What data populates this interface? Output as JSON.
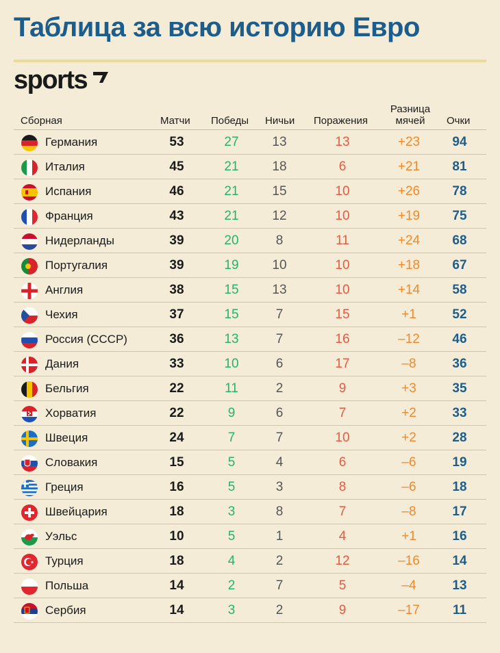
{
  "title": "Таблица за всю историю Евро",
  "brand": "sports",
  "columns": {
    "team": "Сборная",
    "matches": "Матчи",
    "wins": "Победы",
    "draws": "Ничьи",
    "losses": "Поражения",
    "goal_diff_line1": "Разница",
    "goal_diff_line2": "мячей",
    "points": "Очки"
  },
  "colors": {
    "title": "#1d5d8c",
    "wins": "#27b26b",
    "losses": "#e35a45",
    "goal_diff": "#ee8a2e",
    "points": "#1d5d8c",
    "background": "#f4ecd6"
  },
  "chart_data": {
    "type": "table",
    "title": "Таблица за всю историю Евро",
    "columns": [
      "Сборная",
      "Матчи",
      "Победы",
      "Ничьи",
      "Поражения",
      "Разница мячей",
      "Очки"
    ],
    "rows": [
      {
        "team": "Германия",
        "flag": "germany-flag-icon",
        "matches": "53",
        "wins": "27",
        "draws": "13",
        "losses": "13",
        "gd": "+23",
        "points": "94"
      },
      {
        "team": "Италия",
        "flag": "italy-flag-icon",
        "matches": "45",
        "wins": "21",
        "draws": "18",
        "losses": "6",
        "gd": "+21",
        "points": "81"
      },
      {
        "team": "Испания",
        "flag": "spain-flag-icon",
        "matches": "46",
        "wins": "21",
        "draws": "15",
        "losses": "10",
        "gd": "+26",
        "points": "78"
      },
      {
        "team": "Франция",
        "flag": "france-flag-icon",
        "matches": "43",
        "wins": "21",
        "draws": "12",
        "losses": "10",
        "gd": "+19",
        "points": "75"
      },
      {
        "team": "Нидерланды",
        "flag": "netherlands-flag-icon",
        "matches": "39",
        "wins": "20",
        "draws": "8",
        "losses": "11",
        "gd": "+24",
        "points": "68"
      },
      {
        "team": "Португалия",
        "flag": "portugal-flag-icon",
        "matches": "39",
        "wins": "19",
        "draws": "10",
        "losses": "10",
        "gd": "+18",
        "points": "67"
      },
      {
        "team": "Англия",
        "flag": "england-flag-icon",
        "matches": "38",
        "wins": "15",
        "draws": "13",
        "losses": "10",
        "gd": "+14",
        "points": "58"
      },
      {
        "team": "Чехия",
        "flag": "czechia-flag-icon",
        "matches": "37",
        "wins": "15",
        "draws": "7",
        "losses": "15",
        "gd": "+1",
        "points": "52"
      },
      {
        "team": "Россия (СССР)",
        "flag": "russia-flag-icon",
        "matches": "36",
        "wins": "13",
        "draws": "7",
        "losses": "16",
        "gd": "–12",
        "points": "46"
      },
      {
        "team": "Дания",
        "flag": "denmark-flag-icon",
        "matches": "33",
        "wins": "10",
        "draws": "6",
        "losses": "17",
        "gd": "–8",
        "points": "36"
      },
      {
        "team": "Бельгия",
        "flag": "belgium-flag-icon",
        "matches": "22",
        "wins": "11",
        "draws": "2",
        "losses": "9",
        "gd": "+3",
        "points": "35"
      },
      {
        "team": "Хорватия",
        "flag": "croatia-flag-icon",
        "matches": "22",
        "wins": "9",
        "draws": "6",
        "losses": "7",
        "gd": "+2",
        "points": "33"
      },
      {
        "team": "Швеция",
        "flag": "sweden-flag-icon",
        "matches": "24",
        "wins": "7",
        "draws": "7",
        "losses": "10",
        "gd": "+2",
        "points": "28"
      },
      {
        "team": "Словакия",
        "flag": "slovakia-flag-icon",
        "matches": "15",
        "wins": "5",
        "draws": "4",
        "losses": "6",
        "gd": "–6",
        "points": "19"
      },
      {
        "team": "Греция",
        "flag": "greece-flag-icon",
        "matches": "16",
        "wins": "5",
        "draws": "3",
        "losses": "8",
        "gd": "–6",
        "points": "18"
      },
      {
        "team": "Швейцария",
        "flag": "switzerland-flag-icon",
        "matches": "18",
        "wins": "3",
        "draws": "8",
        "losses": "7",
        "gd": "–8",
        "points": "17"
      },
      {
        "team": "Уэльс",
        "flag": "wales-flag-icon",
        "matches": "10",
        "wins": "5",
        "draws": "1",
        "losses": "4",
        "gd": "+1",
        "points": "16"
      },
      {
        "team": "Турция",
        "flag": "turkey-flag-icon",
        "matches": "18",
        "wins": "4",
        "draws": "2",
        "losses": "12",
        "gd": "–16",
        "points": "14"
      },
      {
        "team": "Польша",
        "flag": "poland-flag-icon",
        "matches": "14",
        "wins": "2",
        "draws": "7",
        "losses": "5",
        "gd": "–4",
        "points": "13"
      },
      {
        "team": "Сербия",
        "flag": "serbia-flag-icon",
        "matches": "14",
        "wins": "3",
        "draws": "2",
        "losses": "9",
        "gd": "–17",
        "points": "11"
      }
    ]
  }
}
